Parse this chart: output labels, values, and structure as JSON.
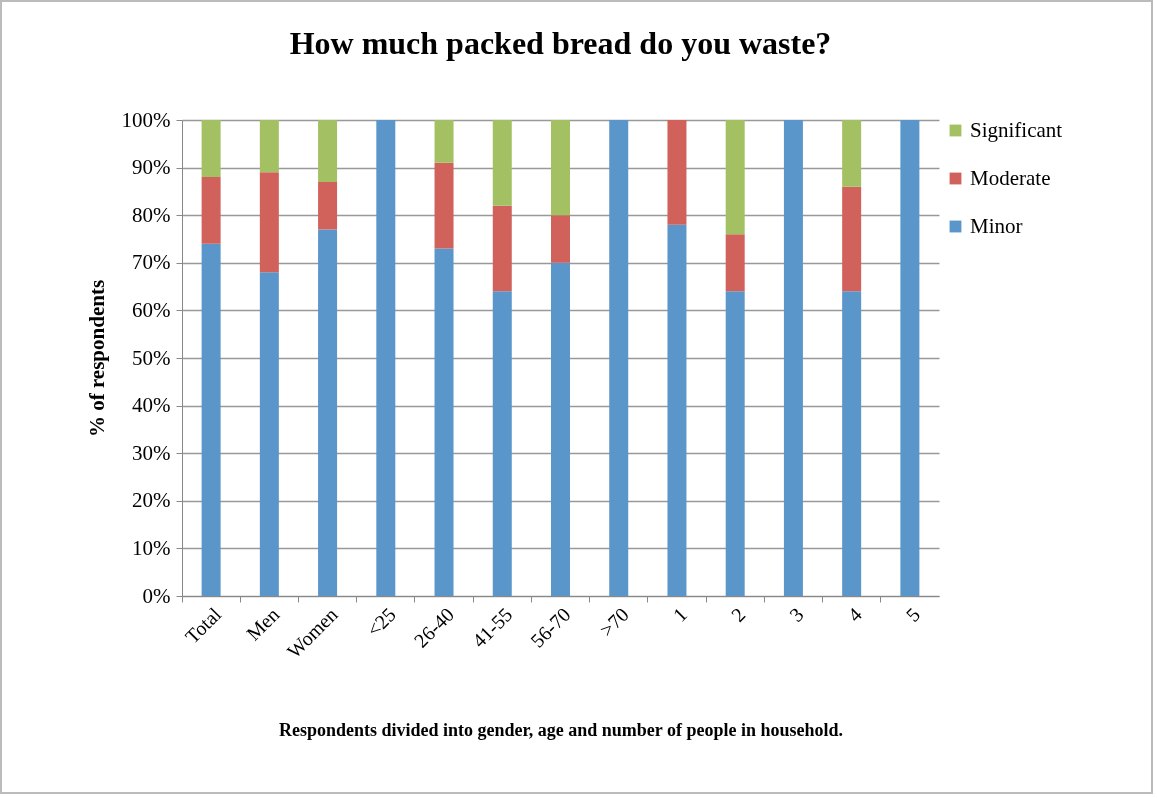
{
  "chart_data": {
    "type": "bar",
    "stacked": true,
    "title": "How much packed bread do you waste?",
    "xlabel": "Respondents divided into gender, age and number of people in household.",
    "ylabel": "% of respondents",
    "categories": [
      "Total",
      "Men",
      "Women",
      "<25",
      "26-40",
      "41-55",
      "56-70",
      ">70",
      "1",
      "2",
      "3",
      "4",
      "5"
    ],
    "series": [
      {
        "name": "Minor",
        "color": "#5b96cb",
        "values": [
          74,
          68,
          77,
          100,
          73,
          64,
          70,
          100,
          78,
          64,
          100,
          64,
          100
        ]
      },
      {
        "name": "Moderate",
        "color": "#d0625b",
        "values": [
          14,
          21,
          10,
          0,
          18,
          18,
          10,
          0,
          22,
          12,
          0,
          22,
          0
        ]
      },
      {
        "name": "Significant",
        "color": "#a3c163",
        "values": [
          12,
          11,
          13,
          0,
          9,
          18,
          20,
          0,
          0,
          24,
          0,
          14,
          0
        ]
      }
    ],
    "ylim": [
      0,
      100
    ],
    "yticks": [
      {
        "value": 0,
        "label": "0%"
      },
      {
        "value": 10,
        "label": "10%"
      },
      {
        "value": 20,
        "label": "20%"
      },
      {
        "value": 30,
        "label": "30%"
      },
      {
        "value": 40,
        "label": "40%"
      },
      {
        "value": 50,
        "label": "50%"
      },
      {
        "value": 60,
        "label": "60%"
      },
      {
        "value": 70,
        "label": "70%"
      },
      {
        "value": 80,
        "label": "80%"
      },
      {
        "value": 90,
        "label": "90%"
      },
      {
        "value": 100,
        "label": "100%"
      }
    ],
    "grid": "y",
    "legend": "right"
  }
}
